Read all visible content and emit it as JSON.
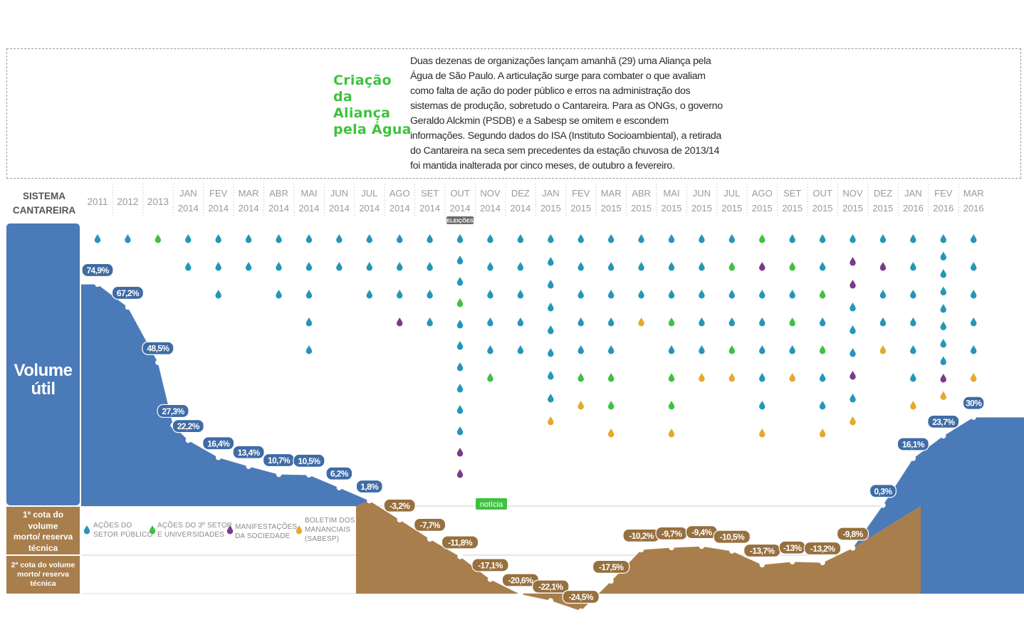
{
  "colors": {
    "volume_blue": "#4a7ab7",
    "deficit_brown": "#a87e4c",
    "drop_publico": "#2596b9",
    "drop_terceiro_setor": "#3ec23e",
    "drop_sociedade": "#7a3a8e",
    "drop_boletim": "#e6a82d",
    "title_green": "#3ec23e"
  },
  "callout": {
    "title": "Criação da\nAliança\npela Água",
    "text": "Duas dezenas de organizações lançam amanhã (29) uma Aliança pela Água de São Paulo. A articulação surge para combater o que avaliam como falta de ação do poder público e erros na administração dos sistemas de produção, sobretudo o Cantareira. Para as ONGs, o governo Geraldo Alckmin (PSDB) e a Sabesp se omitem e escondem informações. Segundo dados do ISA (Instituto Socioambiental), a retirada do Cantareira na seca sem precedentes da estação chuvosa de 2013/14 foi mantida inalterada por cinco meses, de outubro a fevereiro."
  },
  "side_labels": {
    "system_title": "SISTEMA\nCANTAREIRA",
    "volume_util": "Volume\nútil",
    "cota1": "1ª cota do\nvolume\nmorto/ reserva\ntécnica",
    "cota2": "2ª cota do volume\nmorto/ reserva\ntécnica"
  },
  "legend": [
    {
      "key": "publico",
      "label": "AÇÕES DO\nSETOR PÚBLICO"
    },
    {
      "key": "terceiro",
      "label": "AÇÕES DO 3º SETOR\nE UNIVERSIDADES"
    },
    {
      "key": "sociedade",
      "label": "MANIFESTAÇÕES\nDA SOCIEDADE"
    },
    {
      "key": "boletim",
      "label": "BOLETIM DOS\nMANANCIAIS\n(SABESP)"
    }
  ],
  "annotations": {
    "eleicoes": "ELEIÇÕES",
    "noticia": "notícia"
  },
  "chart_data": {
    "type": "area",
    "title": "",
    "xlabel": "",
    "ylabel": "",
    "x": [
      {
        "m": "",
        "y": "2011"
      },
      {
        "m": "",
        "y": "2012"
      },
      {
        "m": "",
        "y": "2013"
      },
      {
        "m": "JAN",
        "y": "2014"
      },
      {
        "m": "FEV",
        "y": "2014"
      },
      {
        "m": "MAR",
        "y": "2014"
      },
      {
        "m": "ABR",
        "y": "2014"
      },
      {
        "m": "MAI",
        "y": "2014"
      },
      {
        "m": "JUN",
        "y": "2014"
      },
      {
        "m": "JUL",
        "y": "2014"
      },
      {
        "m": "AGO",
        "y": "2014"
      },
      {
        "m": "SET",
        "y": "2014"
      },
      {
        "m": "OUT",
        "y": "2014"
      },
      {
        "m": "NOV",
        "y": "2014"
      },
      {
        "m": "DEZ",
        "y": "2014"
      },
      {
        "m": "JAN",
        "y": "2015"
      },
      {
        "m": "FEV",
        "y": "2015"
      },
      {
        "m": "MAR",
        "y": "2015"
      },
      {
        "m": "ABR",
        "y": "2015"
      },
      {
        "m": "MAI",
        "y": "2015"
      },
      {
        "m": "JUN",
        "y": "2015"
      },
      {
        "m": "JUL",
        "y": "2015"
      },
      {
        "m": "AGO",
        "y": "2015"
      },
      {
        "m": "SET",
        "y": "2015"
      },
      {
        "m": "OUT",
        "y": "2015"
      },
      {
        "m": "NOV",
        "y": "2015"
      },
      {
        "m": "DEZ",
        "y": "2015"
      },
      {
        "m": "JAN",
        "y": "2016"
      },
      {
        "m": "FEV",
        "y": "2016"
      },
      {
        "m": "MAR",
        "y": "2016"
      }
    ],
    "series": [
      {
        "values": [
          {
            "x": 0,
            "v": 74.9,
            "label": "74,9%"
          },
          {
            "x": 1,
            "v": 67.2,
            "label": "67,2%"
          },
          {
            "x": 2,
            "v": 48.5,
            "label": "48,5%"
          },
          {
            "x": 2.5,
            "v": 27.3,
            "label": "27,3%"
          },
          {
            "x": 3,
            "v": 22.2,
            "label": "22,2%"
          },
          {
            "x": 4,
            "v": 16.4,
            "label": "16,4%"
          },
          {
            "x": 5,
            "v": 13.4,
            "label": "13,4%"
          },
          {
            "x": 6,
            "v": 10.7,
            "label": "10,7%"
          },
          {
            "x": 7,
            "v": 10.5,
            "label": "10,5%"
          },
          {
            "x": 8,
            "v": 6.2,
            "label": "6,2%"
          },
          {
            "x": 9,
            "v": 1.8,
            "label": "1,8%"
          },
          {
            "x": 10,
            "v": -3.2,
            "label": "-3,2%"
          },
          {
            "x": 11,
            "v": -7.7,
            "label": "-7,7%"
          },
          {
            "x": 12,
            "v": -11.8,
            "label": "-11,8%"
          },
          {
            "x": 13,
            "v": -17.1,
            "label": "-17,1%"
          },
          {
            "x": 14,
            "v": -20.6,
            "label": "-20,6%"
          },
          {
            "x": 15,
            "v": -22.1,
            "label": "-22,1%"
          },
          {
            "x": 16,
            "v": -24.5,
            "label": "-24,5%"
          },
          {
            "x": 17,
            "v": -17.5,
            "label": "-17,5%"
          },
          {
            "x": 18,
            "v": -10.2,
            "label": "-10,2%"
          },
          {
            "x": 19,
            "v": -9.7,
            "label": "-9,7%"
          },
          {
            "x": 20,
            "v": -9.4,
            "label": "-9,4%"
          },
          {
            "x": 21,
            "v": -10.5,
            "label": "-10,5%"
          },
          {
            "x": 22,
            "v": -13.7,
            "label": "-13,7%"
          },
          {
            "x": 23,
            "v": -13.0,
            "label": "-13%"
          },
          {
            "x": 24,
            "v": -13.2,
            "label": "-13,2%"
          },
          {
            "x": 25,
            "v": -9.8,
            "label": "-9,8%"
          },
          {
            "x": 26,
            "v": 0.3,
            "label": "0,3%"
          },
          {
            "x": 27,
            "v": 16.1,
            "label": "16,1%"
          },
          {
            "x": 28,
            "v": 23.7,
            "label": "23,7%"
          },
          {
            "x": 29,
            "v": 30.0,
            "label": "30%"
          }
        ]
      }
    ],
    "events": [
      [
        "p"
      ],
      [
        "p"
      ],
      [
        "t"
      ],
      [
        "p",
        "p"
      ],
      [
        "p",
        "p",
        "p"
      ],
      [
        "p",
        "p"
      ],
      [
        "p",
        "p",
        "p"
      ],
      [
        "p",
        "p",
        "p",
        "p",
        "p"
      ],
      [
        "p",
        "p"
      ],
      [
        "p",
        "p",
        "p"
      ],
      [
        "p",
        "p",
        "p",
        "s"
      ],
      [
        "p",
        "p",
        "p",
        "p"
      ],
      [
        "p",
        "p",
        "p",
        "t",
        "p",
        "p",
        "p",
        "p",
        "p",
        "p",
        "s",
        "s"
      ],
      [
        "p",
        "p",
        "p",
        "p",
        "p",
        "t"
      ],
      [
        "p",
        "p",
        "p",
        "p",
        "p"
      ],
      [
        "p",
        "p",
        "p",
        "p",
        "p",
        "p",
        "p",
        "p",
        "b"
      ],
      [
        "p",
        "p",
        "p",
        "p",
        "p",
        "t",
        "b"
      ],
      [
        "p",
        "p",
        "p",
        "p",
        "p",
        "t",
        "t",
        "b"
      ],
      [
        "p",
        "p",
        "p",
        "b"
      ],
      [
        "p",
        "p",
        "p",
        "t",
        "p",
        "t",
        "t",
        "b"
      ],
      [
        "p",
        "p",
        "p",
        "p",
        "p",
        "b"
      ],
      [
        "p",
        "t",
        "p",
        "p",
        "t",
        "b"
      ],
      [
        "t",
        "s",
        "p",
        "p",
        "p",
        "p",
        "p",
        "b"
      ],
      [
        "p",
        "t",
        "p",
        "t",
        "p",
        "b"
      ],
      [
        "p",
        "p",
        "t",
        "p",
        "t",
        "p",
        "p",
        "b"
      ],
      [
        "p",
        "s",
        "s",
        "p",
        "p",
        "p",
        "s",
        "p",
        "b"
      ],
      [
        "p",
        "s",
        "p",
        "p",
        "b"
      ],
      [
        "p",
        "p",
        "p",
        "p",
        "p",
        "p",
        "b"
      ],
      [
        "p",
        "p",
        "p",
        "p",
        "p",
        "p",
        "p",
        "p",
        "s",
        "b"
      ],
      [
        "p",
        "p",
        "p",
        "p",
        "p",
        "b"
      ]
    ]
  }
}
